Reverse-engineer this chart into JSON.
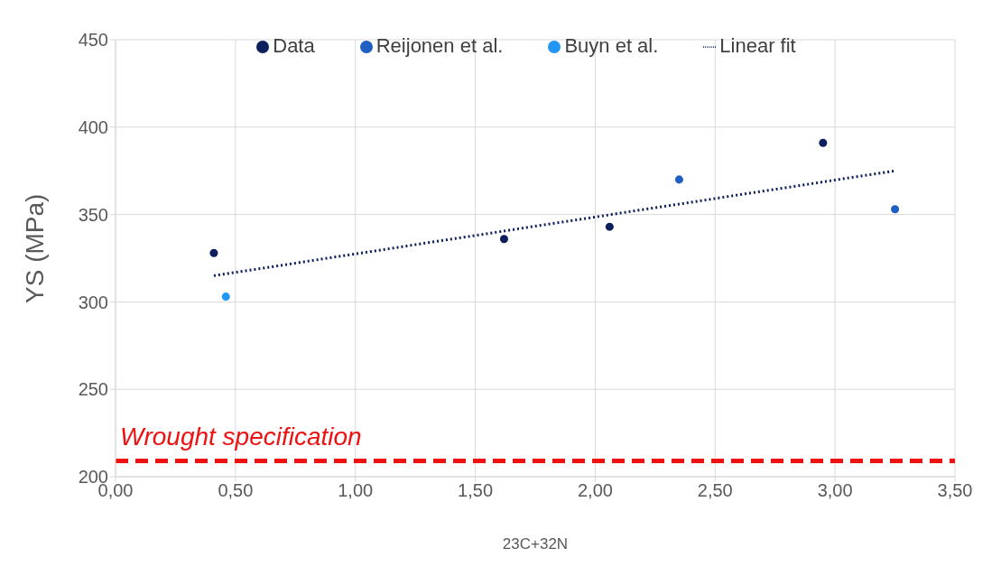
{
  "chart_data": {
    "type": "scatter",
    "xlabel": "23C+32N",
    "ylabel": "YS (MPa)",
    "xlim": [
      0,
      3.5
    ],
    "xticks": [
      {
        "value": 0,
        "label": "0,00"
      },
      {
        "value": 0.5,
        "label": "0,50"
      },
      {
        "value": 1,
        "label": "1,00"
      },
      {
        "value": 1.5,
        "label": "1,50"
      },
      {
        "value": 2,
        "label": "2,00"
      },
      {
        "value": 2.5,
        "label": "2,50"
      },
      {
        "value": 3,
        "label": "3,00"
      },
      {
        "value": 3.5,
        "label": "3,50"
      }
    ],
    "ylim": [
      200,
      450
    ],
    "yticks": [
      200,
      250,
      300,
      350,
      400,
      450
    ],
    "grid": true,
    "legend": "top",
    "marker": "circle",
    "series": [
      {
        "name": "Data",
        "color": "#0d1f5c",
        "x": [
          0.41,
          1.62,
          2.06,
          2.95
        ],
        "values": [
          328,
          336,
          343,
          391
        ]
      },
      {
        "name": "Reijonen et al.",
        "color": "#1f5fc4",
        "x": [
          2.35,
          3.25
        ],
        "values": [
          370,
          353
        ]
      },
      {
        "name": "Buyn et al.",
        "color": "#2196f3",
        "x": [
          0.46
        ],
        "values": [
          303
        ]
      },
      {
        "name": "Linear fit",
        "type": "line",
        "color": "#0d1f5c",
        "line_style": "dotted",
        "marker": "none",
        "x": [
          0.41,
          3.25
        ],
        "values": [
          315,
          375
        ]
      }
    ],
    "ref_lines": [
      {
        "axis": "y",
        "value": 209,
        "label": "Wrought specification",
        "color": "#ee1111",
        "line_style": "dashed"
      }
    ]
  }
}
